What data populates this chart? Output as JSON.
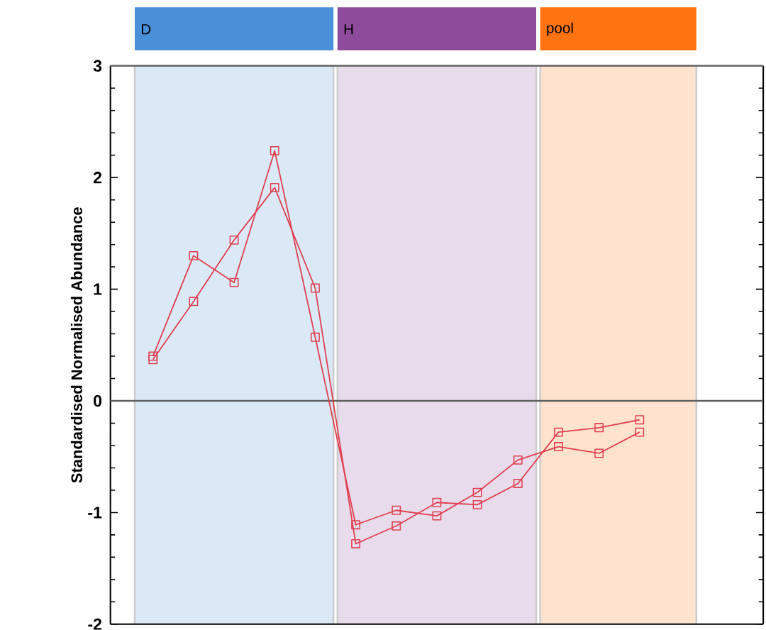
{
  "chart_data": {
    "type": "line",
    "ylabel": "Standardised Normalised Abundance",
    "categories": [
      null,
      null,
      null,
      null,
      null,
      null,
      null,
      null,
      null,
      null,
      null,
      null,
      null
    ],
    "series": [
      {
        "color": "#e0404f",
        "values": [
          0.4,
          1.3,
          1.06,
          2.24,
          0.57,
          -1.11,
          -0.98,
          -1.03,
          -0.82,
          -0.53,
          -0.41,
          -0.47,
          -0.28
        ]
      },
      {
        "color": "#e0404f",
        "values": [
          0.37,
          0.89,
          1.44,
          1.91,
          1.01,
          -1.28,
          -1.12,
          -0.91,
          -0.93,
          -0.74,
          -0.28,
          -0.24,
          -0.17
        ]
      }
    ],
    "ylim": [
      -2,
      3
    ],
    "yticks": [
      -2,
      -1,
      0,
      1,
      2,
      3
    ],
    "marker": "square",
    "line_style": "solid",
    "grid": false,
    "ref_lines": [
      {
        "axis": "y",
        "value": 0,
        "color": "#606060"
      }
    ],
    "annotations": [
      "D",
      "H",
      "pool"
    ]
  }
}
